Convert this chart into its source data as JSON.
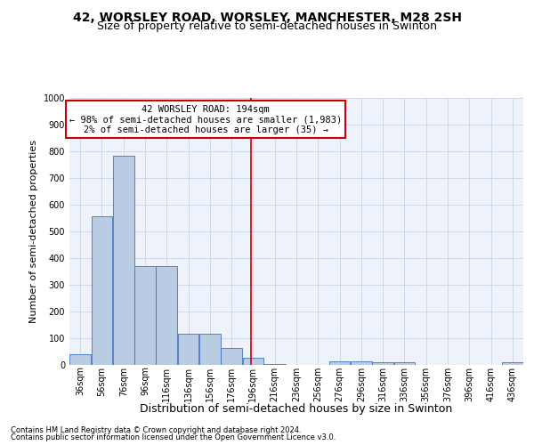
{
  "title": "42, WORSLEY ROAD, WORSLEY, MANCHESTER, M28 2SH",
  "subtitle": "Size of property relative to semi-detached houses in Swinton",
  "xlabel": "Distribution of semi-detached houses by size in Swinton",
  "ylabel": "Number of semi-detached properties",
  "footer1": "Contains HM Land Registry data © Crown copyright and database right 2024.",
  "footer2": "Contains public sector information licensed under the Open Government Licence v3.0.",
  "annotation_title": "42 WORSLEY ROAD: 194sqm",
  "annotation_line1": "← 98% of semi-detached houses are smaller (1,983)",
  "annotation_line2": "2% of semi-detached houses are larger (35) →",
  "property_size": 194,
  "bar_categories": [
    "36sqm",
    "56sqm",
    "76sqm",
    "96sqm",
    "116sqm",
    "136sqm",
    "156sqm",
    "176sqm",
    "196sqm",
    "216sqm",
    "236sqm",
    "256sqm",
    "276sqm",
    "296sqm",
    "316sqm",
    "336sqm",
    "356sqm",
    "376sqm",
    "396sqm",
    "416sqm",
    "436sqm"
  ],
  "bar_values": [
    40,
    558,
    785,
    370,
    370,
    118,
    118,
    65,
    27,
    5,
    0,
    0,
    15,
    15,
    10,
    10,
    0,
    0,
    0,
    0,
    10
  ],
  "bar_edges": [
    26,
    46,
    66,
    86,
    106,
    126,
    146,
    166,
    186,
    206,
    226,
    246,
    266,
    286,
    306,
    326,
    346,
    366,
    386,
    406,
    426,
    446
  ],
  "bar_color": "#b8cce4",
  "bar_edge_color": "#4472c4",
  "vline_color": "#cc0000",
  "vline_x": 194,
  "ylim": [
    0,
    1000
  ],
  "yticks": [
    0,
    100,
    200,
    300,
    400,
    500,
    600,
    700,
    800,
    900,
    1000
  ],
  "annotation_box_color": "#cc0000",
  "bg_color": "#eef2fa",
  "grid_color": "#d0d8e8",
  "title_fontsize": 10,
  "subtitle_fontsize": 9,
  "ylabel_fontsize": 8,
  "xlabel_fontsize": 9,
  "tick_fontsize": 7,
  "footer_fontsize": 6,
  "ann_fontsize": 7.5
}
